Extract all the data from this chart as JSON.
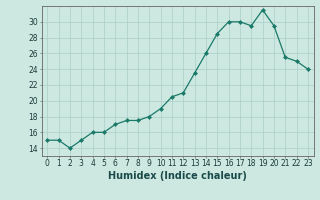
{
  "x": [
    0,
    1,
    2,
    3,
    4,
    5,
    6,
    7,
    8,
    9,
    10,
    11,
    12,
    13,
    14,
    15,
    16,
    17,
    18,
    19,
    20,
    21,
    22,
    23
  ],
  "y": [
    15,
    15,
    14,
    15,
    16,
    16,
    17,
    17.5,
    17.5,
    18,
    19,
    20.5,
    21,
    23.5,
    26,
    28.5,
    30,
    30,
    29.5,
    31.5,
    29.5,
    25.5,
    25,
    24
  ],
  "line_color": "#1a7a6a",
  "marker": "D",
  "marker_size": 2.0,
  "bg_color": "#cde8e0",
  "grid_color": "#aacfc8",
  "xlabel": "Humidex (Indice chaleur)",
  "xlim": [
    -0.5,
    23.5
  ],
  "ylim": [
    13,
    32
  ],
  "yticks": [
    14,
    16,
    18,
    20,
    22,
    24,
    26,
    28,
    30
  ],
  "xticks": [
    0,
    1,
    2,
    3,
    4,
    5,
    6,
    7,
    8,
    9,
    10,
    11,
    12,
    13,
    14,
    15,
    16,
    17,
    18,
    19,
    20,
    21,
    22,
    23
  ],
  "tick_label_fontsize": 5.5,
  "xlabel_fontsize": 7.0
}
